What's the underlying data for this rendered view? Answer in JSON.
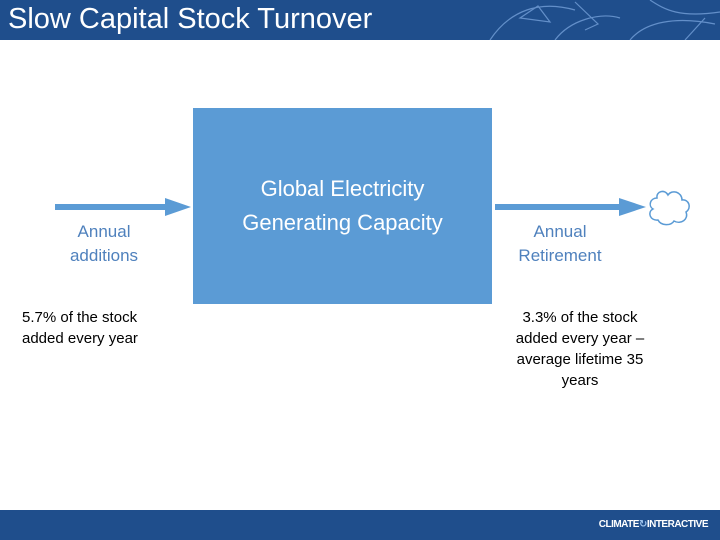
{
  "slide": {
    "title": "Slow Capital Stock Turnover"
  },
  "stock": {
    "label_line1": "Global Electricity",
    "label_line2": "Generating Capacity"
  },
  "inflow": {
    "label_line1": "Annual",
    "label_line2": "additions",
    "note_line1": "5.7% of the stock",
    "note_line2": "added every year"
  },
  "outflow": {
    "label_line1": "Annual",
    "label_line2": "Retirement",
    "note_line1": "3.3% of the stock",
    "note_line2": "added every year –",
    "note_line3": "average lifetime 35",
    "note_line4": "years"
  },
  "footer": {
    "brand_part1": "CLIMATE",
    "brand_part2": "INTERACTIVE"
  },
  "colors": {
    "header_bar": "#1f4e8c",
    "stock_fill": "#5b9bd5",
    "flow_arrow": "#5b9bd5",
    "flow_label": "#4f81bd"
  },
  "icons": {
    "sink": "cloud-icon",
    "logo": "climate-interactive-logo"
  }
}
